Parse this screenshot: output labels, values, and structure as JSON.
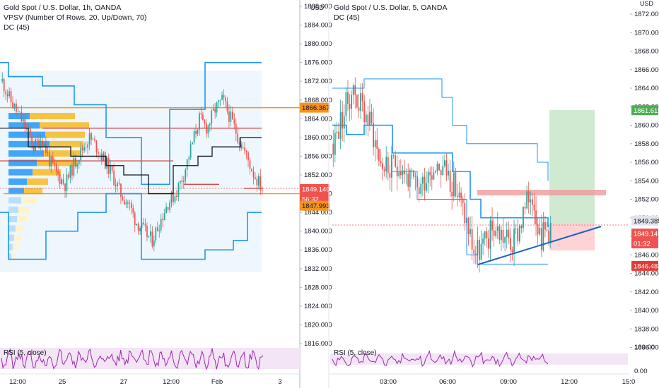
{
  "left_chart": {
    "legend": [
      "Gold Spot / U.S. Dollar, 1h, OANDA",
      "VPSV (Number Of Rows, 20, Up/Down, 70)",
      "DC (45)"
    ],
    "currency": "USD",
    "price_ticks": [
      "1888.000",
      "1884.000",
      "1880.000",
      "1876.000",
      "1872.000",
      "1868.000",
      "1864.000",
      "1860.000",
      "1856.000",
      "1852.000",
      "1848.000",
      "1844.000",
      "1840.000",
      "1836.000",
      "1832.000",
      "1828.000",
      "1824.000",
      "1820.000",
      "1816.000"
    ],
    "time_ticks": [
      "12:00",
      "25",
      "27",
      "12:00",
      "Feb",
      "3"
    ],
    "badges": {
      "upper_orange": "1866.367",
      "last_price": "1849.140",
      "countdown": "56:32",
      "lower_orange": "1847.993"
    },
    "rsi_label": "RSI (5, close)"
  },
  "right_chart": {
    "legend": [
      "Gold Spot / U.S. Dollar, 5, OANDA",
      "DC (45)"
    ],
    "currency": "USD",
    "price_ticks": [
      "1872.000",
      "1870.000",
      "1868.000",
      "1866.000",
      "1864.000",
      "1862.000",
      "1860.000",
      "1858.000",
      "1856.000",
      "1854.000",
      "1852.000",
      "1850.000",
      "1848.000",
      "1846.000",
      "1844.000",
      "1842.000",
      "1840.000",
      "1838.000",
      "1836.000"
    ],
    "time_ticks": [
      "03:00",
      "06:00",
      "09:00",
      "12:00",
      "15:0"
    ],
    "badges": {
      "target": "1861.616",
      "entry": "1849.389",
      "last_price": "1849.140",
      "countdown": "01:32",
      "stop": "1846.483"
    },
    "rsi_label": "RSI (5, close)",
    "rsi_ticks": [
      "100.00",
      "0.00"
    ]
  },
  "colors": {
    "bull": "#26a69a",
    "bear": "#ef5350",
    "donchian": "#2196f3",
    "orange": "#f7931a",
    "red_level": "#d32f2f",
    "rsi": "#9c27b0",
    "target_zone": "#c8e6c9",
    "stop_zone": "#ffcdd2"
  },
  "chart_data": [
    {
      "type": "candlestick",
      "title": "Gold Spot / U.S. Dollar, 1h, OANDA",
      "x_ticks": [
        "12:00",
        "25",
        "27",
        "12:00",
        "Feb",
        "3"
      ],
      "ylim": [
        1816,
        1888
      ],
      "overlays": {
        "volume_profile": "VPSV (Number Of Rows, 20, Up/Down, 70)",
        "donchian": "DC (45)",
        "levels": [
          1866.367,
          1862.0,
          1855.0,
          1850.0,
          1847.993
        ],
        "donchian_upper_steps": [
          1872,
          1876,
          1867,
          1866,
          1876,
          1876
        ],
        "donchian_lower_steps": [
          1844,
          1834,
          1848,
          1834,
          1834,
          1844
        ]
      },
      "close_sample": [
        1872,
        1868,
        1865,
        1862,
        1858,
        1860,
        1855,
        1852,
        1850,
        1854,
        1857,
        1860,
        1858,
        1855,
        1852,
        1848,
        1846,
        1842,
        1840,
        1838,
        1842,
        1846,
        1848,
        1852,
        1858,
        1864,
        1862,
        1866,
        1868,
        1864,
        1860,
        1856,
        1852,
        1849.14
      ],
      "last": 1849.14
    },
    {
      "type": "candlestick",
      "title": "Gold Spot / U.S. Dollar, 5, OANDA",
      "x_ticks": [
        "03:00",
        "06:00",
        "09:00",
        "12:00",
        "15:0"
      ],
      "ylim": [
        1836,
        1874
      ],
      "position": {
        "entry": 1849.389,
        "target": 1861.616,
        "stop": 1846.483
      },
      "resistance_zone": [
        1852.5,
        1853.2
      ],
      "trendline": [
        [
          1844.8,
          "start"
        ],
        [
          1849.2,
          "end"
        ]
      ],
      "close_sample": [
        1858,
        1861,
        1864,
        1862,
        1860,
        1856,
        1855,
        1856,
        1854,
        1853,
        1855,
        1856,
        1855,
        1853,
        1850,
        1846,
        1847,
        1849,
        1848,
        1847,
        1850,
        1853,
        1848,
        1849.14
      ],
      "last": 1849.14
    }
  ]
}
